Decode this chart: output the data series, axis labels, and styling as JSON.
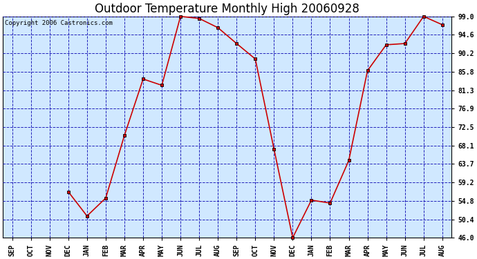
{
  "title": "Outdoor Temperature Monthly High 20060928",
  "copyright": "Copyright 2006 Castronics.com",
  "categories": [
    "SEP",
    "OCT",
    "NOV",
    "DEC",
    "JAN",
    "FEB",
    "MAR",
    "APR",
    "MAY",
    "JUN",
    "JUL",
    "AUG",
    "SEP",
    "OCT",
    "NOV",
    "DEC",
    "JAN",
    "FEB",
    "MAR",
    "APR",
    "MAY",
    "JUN",
    "JUL",
    "AUG"
  ],
  "y_values": [
    null,
    null,
    null,
    57.0,
    51.2,
    55.5,
    70.5,
    84.0,
    82.5,
    99.0,
    98.5,
    96.3,
    92.5,
    88.8,
    67.2,
    46.0,
    55.0,
    54.3,
    64.5,
    86.0,
    92.2,
    92.5,
    99.0,
    97.0
  ],
  "ylim": [
    46.0,
    99.0
  ],
  "yticks": [
    46.0,
    50.4,
    54.8,
    59.2,
    63.7,
    68.1,
    72.5,
    76.9,
    81.3,
    85.8,
    90.2,
    94.6,
    99.0
  ],
  "line_color": "#cc0000",
  "marker_facecolor": "#cc0000",
  "marker_edgecolor": "#000000",
  "grid_color": "#2222bb",
  "bg_color": "#d0e8ff",
  "outer_bg": "#ffffff",
  "title_fontsize": 12,
  "tick_fontsize": 7,
  "copyright_fontsize": 6.5
}
